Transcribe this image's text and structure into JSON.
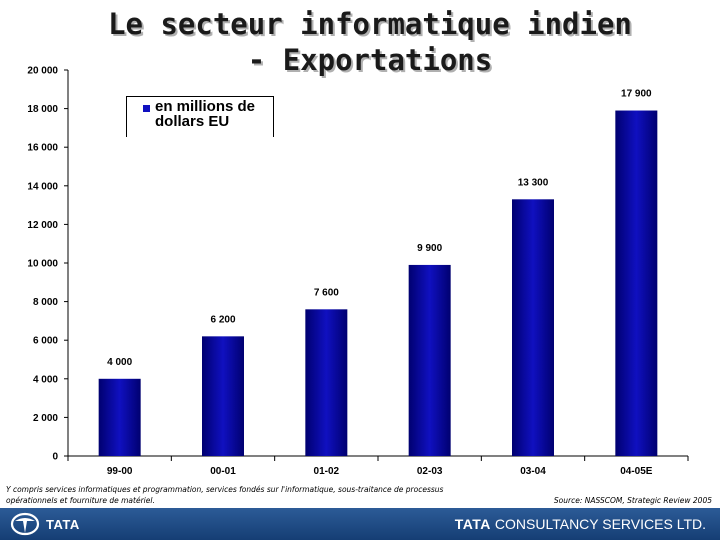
{
  "title_line1": "Le secteur informatique indien",
  "title_line2": "- Exportations",
  "footnote_line1": "Y compris services informatiques et programmation, services fondés sur l'informatique, sous-traitance de processus",
  "footnote_line2": "opérationnels et fourniture de matériel.",
  "source": "Source: NASSCOM, Strategic Review 2005",
  "footer": {
    "brand_left": "TATA",
    "brand_right_tata": "TATA",
    "brand_right_name": "CONSULTANCY SERVICES LTD."
  },
  "colors": {
    "bar": "#1010c0",
    "footer": "#1d4680"
  },
  "icons": [
    "tata-logo-icon",
    "tata-logo-icon"
  ],
  "chart_data": {
    "type": "bar",
    "categories": [
      "99-00",
      "00-01",
      "01-02",
      "02-03",
      "03-04",
      "04-05E"
    ],
    "series": [
      {
        "name": "en millions de dollars EU",
        "values": [
          4000,
          6200,
          7600,
          9900,
          13300,
          17900
        ]
      }
    ],
    "data_labels": [
      "4 000",
      "6 200",
      "7 600",
      "9 900",
      "13 300",
      "17 900"
    ],
    "yticks": [
      0,
      2000,
      4000,
      6000,
      8000,
      10000,
      12000,
      14000,
      16000,
      18000,
      20000
    ],
    "ytick_labels": [
      "0",
      "2 000",
      "4 000",
      "6 000",
      "8 000",
      "10 000",
      "12 000",
      "14 000",
      "16 000",
      "18 000",
      "20 000"
    ],
    "ylim": [
      0,
      20000
    ],
    "grid": false,
    "legend_position": "top-left"
  }
}
